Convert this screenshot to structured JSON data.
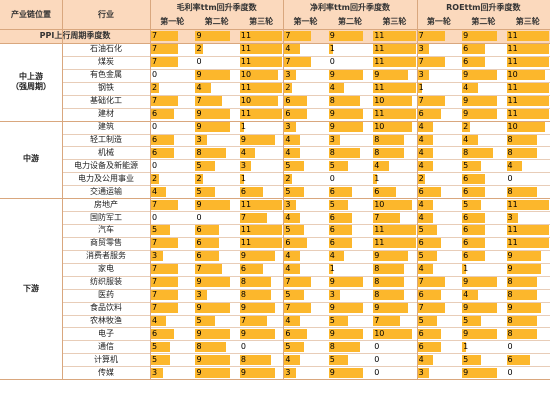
{
  "header": {
    "position": "产业链位置",
    "industry": "行业",
    "groups": [
      {
        "title": "毛利率ttm回升季度数",
        "rounds": [
          "第一轮",
          "第二轮",
          "第三轮"
        ]
      },
      {
        "title": "净利率ttm回升季度数",
        "rounds": [
          "第一轮",
          "第二轮",
          "第三轮"
        ]
      },
      {
        "title": "ROEttm回升季度数",
        "rounds": [
          "第一轮",
          "第二轮",
          "第三轮"
        ]
      }
    ]
  },
  "ppi": {
    "label": "PPI上行周期季度数",
    "values": [
      7,
      9,
      11,
      7,
      9,
      11,
      7,
      9,
      11
    ]
  },
  "sections": [
    {
      "label": [
        "中上游",
        "（强周期）"
      ],
      "rows": [
        {
          "name": "石油石化",
          "values": [
            7,
            2,
            11,
            4,
            1,
            11,
            3,
            6,
            11
          ]
        },
        {
          "name": "煤炭",
          "values": [
            7,
            0,
            11,
            7,
            0,
            11,
            7,
            6,
            11
          ]
        },
        {
          "name": "有色金属",
          "values": [
            0,
            9,
            10,
            3,
            9,
            9,
            3,
            9,
            10
          ]
        },
        {
          "name": "钢铁",
          "values": [
            2,
            4,
            11,
            2,
            4,
            11,
            1,
            4,
            11
          ]
        },
        {
          "name": "基础化工",
          "values": [
            7,
            7,
            10,
            6,
            8,
            10,
            7,
            9,
            11
          ]
        },
        {
          "name": "建材",
          "values": [
            6,
            9,
            11,
            6,
            9,
            11,
            6,
            9,
            11
          ]
        }
      ]
    },
    {
      "label": [
        "中游"
      ],
      "rows": [
        {
          "name": "建筑",
          "values": [
            0,
            9,
            1,
            3,
            9,
            10,
            4,
            2,
            10
          ]
        },
        {
          "name": "轻工制造",
          "values": [
            6,
            3,
            9,
            4,
            3,
            8,
            4,
            4,
            8
          ]
        },
        {
          "name": "机械",
          "values": [
            6,
            8,
            4,
            4,
            8,
            8,
            4,
            8,
            8
          ]
        },
        {
          "name": "电力设备及新能源",
          "values": [
            0,
            5,
            3,
            5,
            5,
            4,
            4,
            5,
            4
          ]
        },
        {
          "name": "电力及公用事业",
          "values": [
            2,
            2,
            1,
            2,
            0,
            1,
            2,
            6,
            0
          ]
        },
        {
          "name": "交通运输",
          "values": [
            4,
            5,
            6,
            5,
            6,
            6,
            6,
            6,
            8
          ]
        }
      ]
    },
    {
      "label": [
        "下游"
      ],
      "rows": [
        {
          "name": "房地产",
          "values": [
            7,
            9,
            11,
            3,
            5,
            10,
            4,
            5,
            11
          ]
        },
        {
          "name": "国防军工",
          "values": [
            0,
            0,
            7,
            4,
            6,
            7,
            4,
            6,
            3
          ]
        },
        {
          "name": "汽车",
          "values": [
            5,
            6,
            11,
            5,
            6,
            11,
            5,
            6,
            11
          ]
        },
        {
          "name": "商贸零售",
          "values": [
            7,
            6,
            11,
            6,
            6,
            11,
            6,
            6,
            11
          ]
        },
        {
          "name": "消费者服务",
          "values": [
            3,
            6,
            9,
            4,
            4,
            9,
            5,
            6,
            9
          ]
        },
        {
          "name": "家电",
          "values": [
            7,
            7,
            6,
            4,
            1,
            8,
            4,
            1,
            9
          ]
        },
        {
          "name": "纺织服装",
          "values": [
            7,
            9,
            8,
            7,
            9,
            8,
            7,
            9,
            8
          ]
        },
        {
          "name": "医药",
          "values": [
            7,
            3,
            8,
            5,
            3,
            8,
            6,
            4,
            8
          ]
        },
        {
          "name": "食品饮料",
          "values": [
            7,
            9,
            9,
            7,
            9,
            9,
            7,
            9,
            9
          ]
        },
        {
          "name": "农林牧渔",
          "values": [
            4,
            5,
            7,
            4,
            5,
            7,
            5,
            5,
            8
          ]
        },
        {
          "name": "电子",
          "values": [
            6,
            9,
            9,
            6,
            9,
            10,
            6,
            9,
            8
          ]
        },
        {
          "name": "通信",
          "values": [
            5,
            8,
            0,
            5,
            8,
            0,
            6,
            1,
            0
          ]
        },
        {
          "name": "计算机",
          "values": [
            5,
            9,
            8,
            4,
            5,
            0,
            4,
            5,
            6
          ]
        },
        {
          "name": "传媒",
          "values": [
            3,
            9,
            9,
            3,
            9,
            0,
            3,
            9,
            0
          ]
        }
      ]
    }
  ]
}
